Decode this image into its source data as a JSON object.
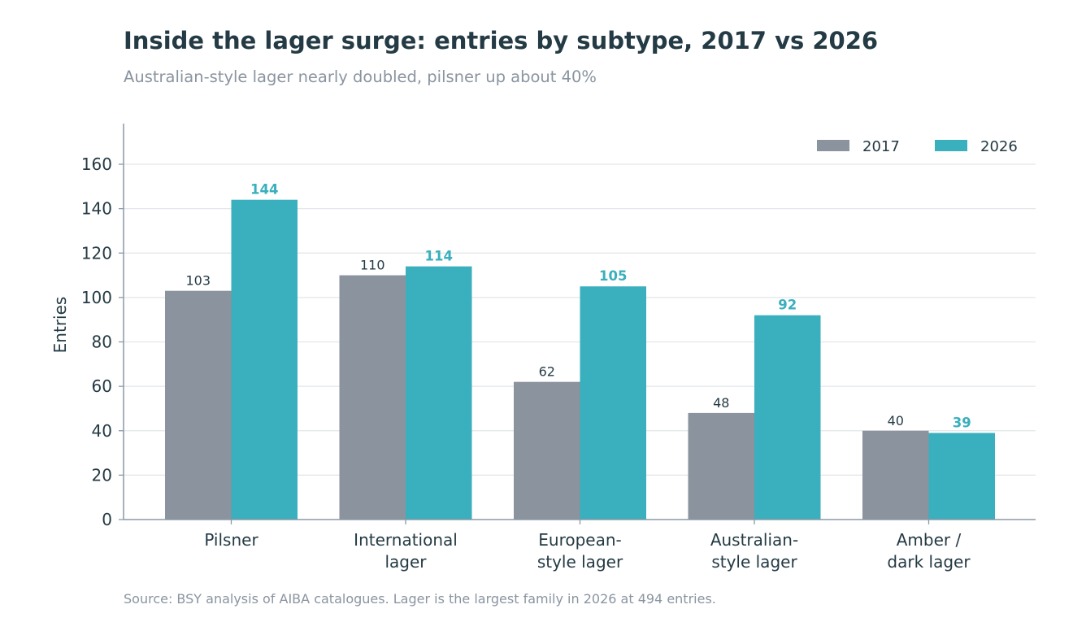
{
  "title": "Inside the lager surge: entries by subtype, 2017 vs 2026",
  "subtitle": "Australian-style lager nearly doubled, pilsner up about 40%",
  "source": "Source: BSY analysis of AIBA catalogues. Lager is the largest family in 2026 at 494 entries.",
  "colors": {
    "series_2017": "#8b939e",
    "series_2026": "#3aafbd",
    "text_dark": "#243a44",
    "text_muted": "#8a94a0",
    "grid": "#e2e6e9",
    "axis": "#8a99a6"
  },
  "chart_data": {
    "type": "bar",
    "categories": [
      [
        "Pilsner"
      ],
      [
        "International",
        "lager"
      ],
      [
        "European-",
        "style lager"
      ],
      [
        "Australian-",
        "style lager"
      ],
      [
        "Amber /",
        "dark lager"
      ]
    ],
    "series": [
      {
        "name": "2017",
        "values": [
          103,
          110,
          62,
          48,
          40
        ]
      },
      {
        "name": "2026",
        "values": [
          144,
          114,
          105,
          92,
          39
        ]
      }
    ],
    "ylabel": "Entries",
    "ylim": [
      0,
      178
    ],
    "yticks": [
      0,
      20,
      40,
      60,
      80,
      100,
      120,
      140,
      160
    ],
    "grid": true,
    "legend_position": "top-right"
  }
}
